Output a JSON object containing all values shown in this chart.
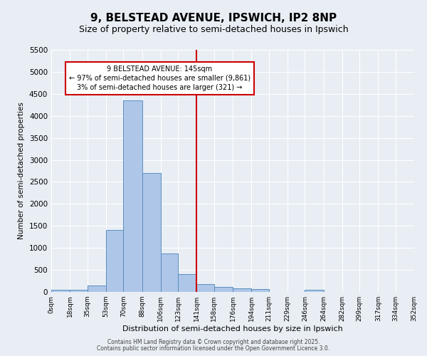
{
  "title": "9, BELSTEAD AVENUE, IPSWICH, IP2 8NP",
  "subtitle": "Size of property relative to semi-detached houses in Ipswich",
  "xlabel": "Distribution of semi-detached houses by size in Ipswich",
  "ylabel": "Number of semi-detached properties",
  "bin_labels": [
    "0sqm",
    "18sqm",
    "35sqm",
    "53sqm",
    "70sqm",
    "88sqm",
    "106sqm",
    "123sqm",
    "141sqm",
    "158sqm",
    "176sqm",
    "194sqm",
    "211sqm",
    "229sqm",
    "246sqm",
    "264sqm",
    "282sqm",
    "299sqm",
    "317sqm",
    "334sqm",
    "352sqm"
  ],
  "bin_edges": [
    0,
    18,
    35,
    53,
    70,
    88,
    106,
    123,
    141,
    158,
    176,
    194,
    211,
    229,
    246,
    264,
    282,
    299,
    317,
    334,
    352
  ],
  "bar_values": [
    50,
    50,
    150,
    1400,
    4350,
    2700,
    870,
    400,
    175,
    120,
    80,
    60,
    0,
    0,
    50,
    0,
    0,
    0,
    0,
    0
  ],
  "bar_color": "#aec6e8",
  "bar_edge_color": "#5a8fc0",
  "vline_x": 141,
  "vline_color": "#cc0000",
  "annotation_line1": "9 BELSTEAD AVENUE: 145sqm",
  "annotation_line2": "← 97% of semi-detached houses are smaller (9,861)",
  "annotation_line3": "3% of semi-detached houses are larger (321) →",
  "annotation_box_color": "#ffffff",
  "annotation_box_edge_color": "#cc0000",
  "ylim": [
    0,
    5500
  ],
  "yticks": [
    0,
    500,
    1000,
    1500,
    2000,
    2500,
    3000,
    3500,
    4000,
    4500,
    5000,
    5500
  ],
  "bg_color": "#e8eef4",
  "footer_line1": "Contains HM Land Registry data © Crown copyright and database right 2025.",
  "footer_line2": "Contains public sector information licensed under the Open Government Licence 3.0.",
  "title_fontsize": 11,
  "subtitle_fontsize": 9
}
